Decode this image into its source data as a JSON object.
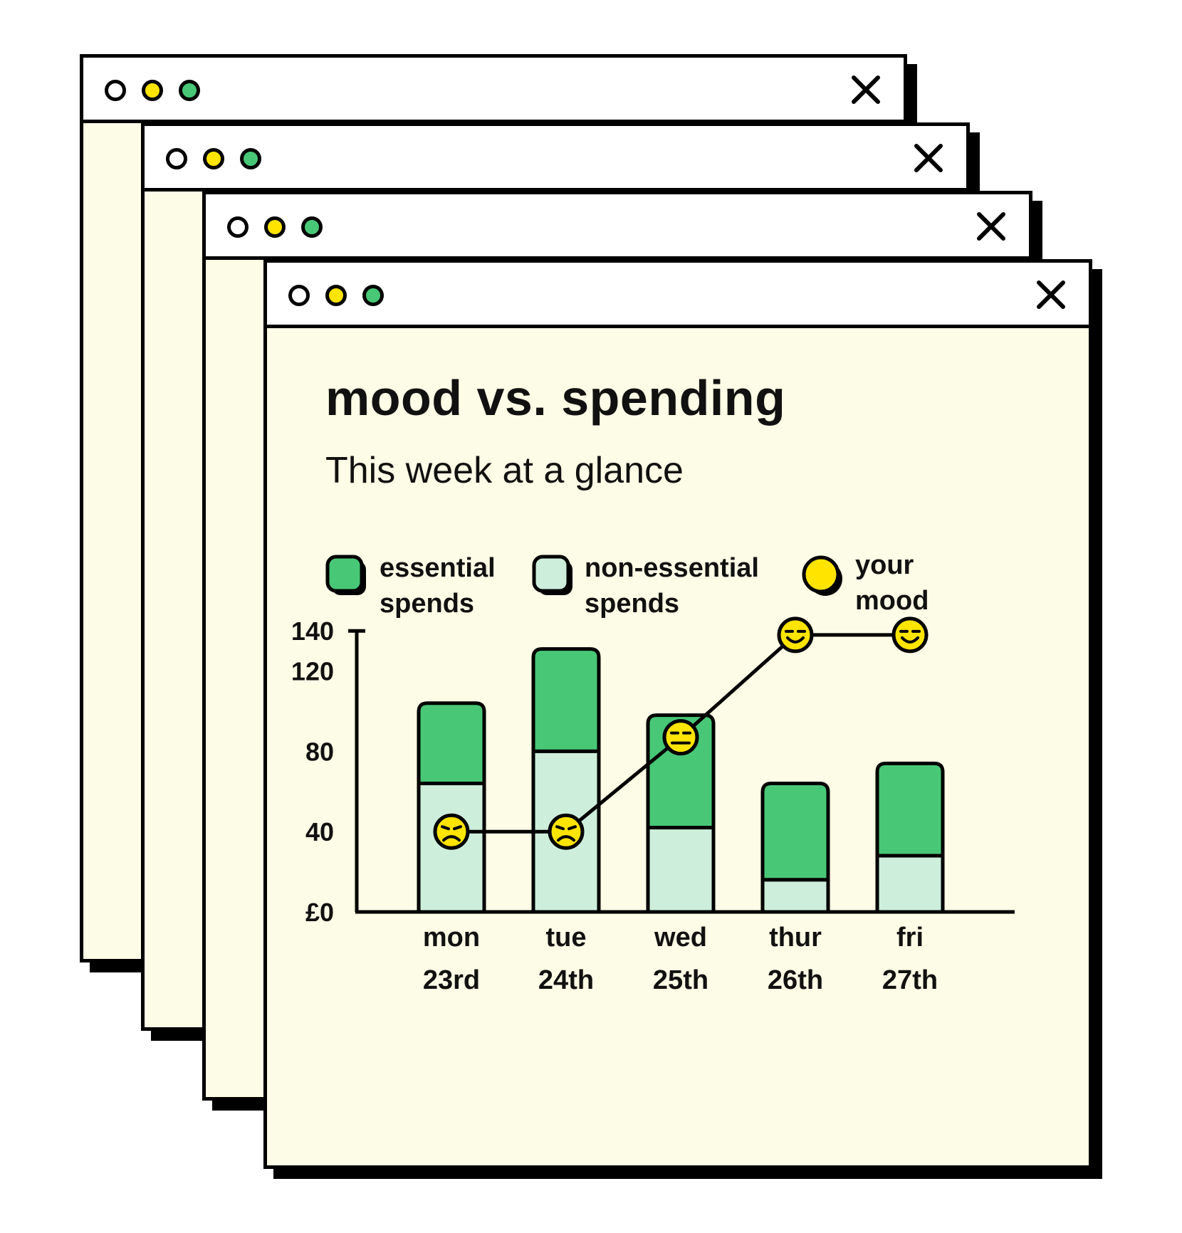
{
  "colors": {
    "essential": "#48c876",
    "non_essential": "#cdeedb",
    "mood": "#ffe400",
    "window_bg": "#fdfce6",
    "titlebar_bg": "#ffffff",
    "dot_white": "#ffffff",
    "dot_yellow": "#ffe400",
    "dot_green": "#48c876",
    "outline": "#000000"
  },
  "windows": [
    {
      "icons": [
        "white-dot-icon",
        "yellow-dot-icon",
        "green-dot-icon",
        "close-icon"
      ]
    },
    {
      "icons": [
        "white-dot-icon",
        "yellow-dot-icon",
        "green-dot-icon",
        "close-icon"
      ]
    },
    {
      "icons": [
        "white-dot-icon",
        "yellow-dot-icon",
        "green-dot-icon",
        "close-icon"
      ]
    },
    {
      "icons": [
        "white-dot-icon",
        "yellow-dot-icon",
        "green-dot-icon",
        "close-icon"
      ]
    }
  ],
  "legend": {
    "essential": {
      "line1": "essential",
      "line2": "spends"
    },
    "non_essential": {
      "line1": "non-essential",
      "line2": "spends"
    },
    "mood": {
      "line1": "your",
      "line2": "mood"
    }
  },
  "chart_data": {
    "type": "bar",
    "title": "mood vs. spending",
    "subtitle": "This week at a glance",
    "categories": [
      {
        "day": "mon",
        "date": "23rd"
      },
      {
        "day": "tue",
        "date": "24th"
      },
      {
        "day": "wed",
        "date": "25th"
      },
      {
        "day": "thur",
        "date": "26th"
      },
      {
        "day": "fri",
        "date": "27th"
      }
    ],
    "stacked": true,
    "series": [
      {
        "name": "non-essential spends",
        "values": [
          64,
          80,
          42,
          16,
          28
        ]
      },
      {
        "name": "essential spends",
        "values": [
          40,
          51,
          56,
          48,
          46
        ]
      },
      {
        "name": "your mood",
        "type": "line",
        "values": [
          "sad",
          "sad",
          "neutral",
          "happy",
          "happy"
        ],
        "plotted_at": [
          40,
          40,
          87,
          138,
          138
        ]
      }
    ],
    "y_ticks": [
      "£0",
      "40",
      "80",
      "120",
      "140"
    ],
    "y_tick_values": [
      0,
      40,
      80,
      120,
      140
    ],
    "ylim": [
      0,
      140
    ],
    "xlabel": "",
    "ylabel": "",
    "grid": false,
    "legend_position": "top"
  }
}
